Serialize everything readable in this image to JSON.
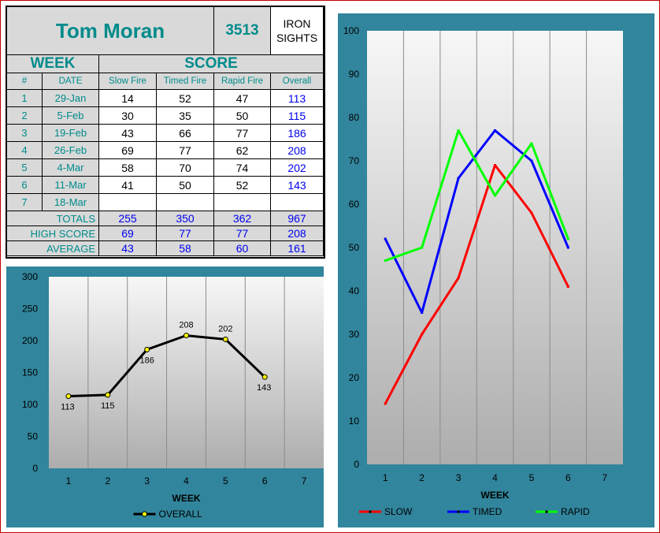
{
  "sheet": {
    "shooter_name": "Tom Moran",
    "shooter_number": "3513",
    "sights_line1": "IRON",
    "sights_line2": "SIGHTS",
    "week_header": "WEEK",
    "score_header": "SCORE",
    "columns": [
      "#",
      "DATE",
      "Slow Fire",
      "Timed Fire",
      "Rapid Fire",
      "Overall"
    ],
    "rows": [
      {
        "num": "1",
        "date": "29-Jan",
        "slow": "14",
        "timed": "52",
        "rapid": "47",
        "overall": "113"
      },
      {
        "num": "2",
        "date": "5-Feb",
        "slow": "30",
        "timed": "35",
        "rapid": "50",
        "overall": "115"
      },
      {
        "num": "3",
        "date": "19-Feb",
        "slow": "43",
        "timed": "66",
        "rapid": "77",
        "overall": "186"
      },
      {
        "num": "4",
        "date": "26-Feb",
        "slow": "69",
        "timed": "77",
        "rapid": "62",
        "overall": "208"
      },
      {
        "num": "5",
        "date": "4-Mar",
        "slow": "58",
        "timed": "70",
        "rapid": "74",
        "overall": "202"
      },
      {
        "num": "6",
        "date": "11-Mar",
        "slow": "41",
        "timed": "50",
        "rapid": "52",
        "overall": "143"
      },
      {
        "num": "7",
        "date": "18-Mar",
        "slow": "",
        "timed": "",
        "rapid": "",
        "overall": ""
      }
    ],
    "summary": [
      {
        "label": "TOTALS",
        "slow": "255",
        "timed": "350",
        "rapid": "362",
        "overall": "967"
      },
      {
        "label": "HIGH SCORE",
        "slow": "69",
        "timed": "77",
        "rapid": "77",
        "overall": "208"
      },
      {
        "label": "AVERAGE",
        "slow": "43",
        "timed": "58",
        "rapid": "60",
        "overall": "161"
      }
    ]
  },
  "chart_data": [
    {
      "type": "line",
      "x": [
        1,
        2,
        3,
        4,
        5,
        6
      ],
      "categories": [
        "1",
        "2",
        "3",
        "4",
        "5",
        "6",
        "7"
      ],
      "xlabel": "WEEK",
      "ylabel": "",
      "ylim": [
        0,
        300
      ],
      "yticks": [
        "0",
        "50",
        "100",
        "150",
        "200",
        "250",
        "300"
      ],
      "grid": "vertical",
      "legend": "bottom",
      "series": [
        {
          "name": "OVERALL",
          "color": "#000000",
          "marker_color": "#ffff00",
          "values": [
            113,
            115,
            186,
            208,
            202,
            143
          ],
          "labels": [
            "113",
            "115",
            "186",
            "208",
            "202",
            "143"
          ]
        }
      ]
    },
    {
      "type": "line",
      "x": [
        1,
        2,
        3,
        4,
        5,
        6
      ],
      "categories": [
        "1",
        "2",
        "3",
        "4",
        "5",
        "6",
        "7"
      ],
      "xlabel": "WEEK",
      "ylabel": "",
      "ylim": [
        0,
        100
      ],
      "yticks": [
        "0",
        "10",
        "20",
        "30",
        "40",
        "50",
        "60",
        "70",
        "80",
        "90",
        "100"
      ],
      "grid": "vertical",
      "legend": "bottom",
      "series": [
        {
          "name": "SLOW",
          "color": "#ff0000",
          "values": [
            14,
            30,
            43,
            69,
            58,
            41
          ]
        },
        {
          "name": "TIMED",
          "color": "#0000ff",
          "values": [
            52,
            35,
            66,
            77,
            70,
            50
          ]
        },
        {
          "name": "RAPID",
          "color": "#00ff00",
          "values": [
            47,
            50,
            77,
            62,
            74,
            52
          ]
        }
      ]
    }
  ]
}
